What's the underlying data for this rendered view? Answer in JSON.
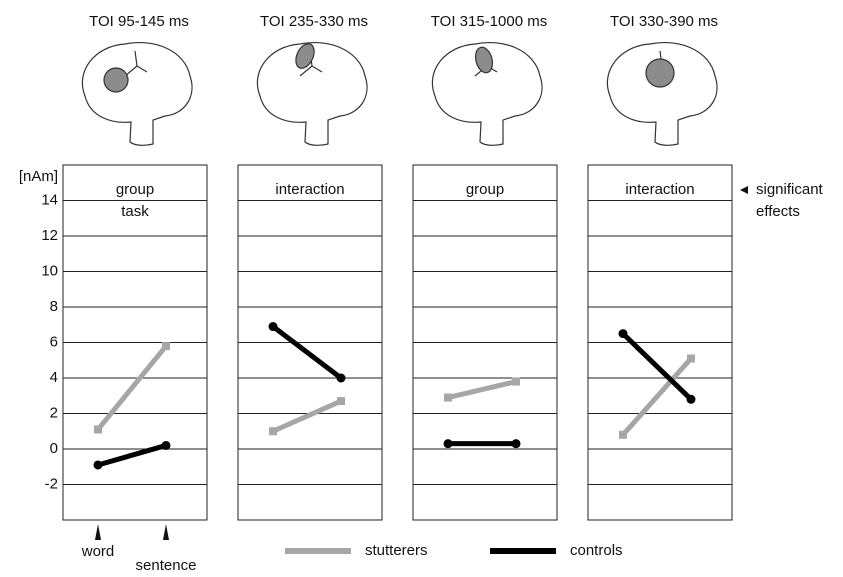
{
  "chart_data": [
    {
      "type": "line",
      "title": "TOI 95-145 ms",
      "annotations": [
        "group",
        "task"
      ],
      "y_label": "[nAm]",
      "categories": [
        "word",
        "sentence"
      ],
      "ylim": [
        -4,
        16
      ],
      "yticks": [
        -2,
        0,
        2,
        4,
        6,
        8,
        10,
        12,
        14
      ],
      "series": [
        {
          "name": "stutterers",
          "color": "#a6a6a6",
          "values": [
            1.1,
            5.8
          ]
        },
        {
          "name": "controls",
          "color": "#000000",
          "values": [
            -0.9,
            0.2
          ]
        }
      ]
    },
    {
      "type": "line",
      "title": "TOI 235-330 ms",
      "annotations": [
        "interaction"
      ],
      "ylim": [
        -4,
        16
      ],
      "series": [
        {
          "name": "stutterers",
          "color": "#a6a6a6",
          "values": [
            1.0,
            2.7
          ]
        },
        {
          "name": "controls",
          "color": "#000000",
          "values": [
            6.9,
            4.0
          ]
        }
      ]
    },
    {
      "type": "line",
      "title": "TOI 315-1000 ms",
      "annotations": [
        "group"
      ],
      "ylim": [
        -4,
        16
      ],
      "series": [
        {
          "name": "stutterers",
          "color": "#a6a6a6",
          "values": [
            2.9,
            3.8
          ]
        },
        {
          "name": "controls",
          "color": "#000000",
          "values": [
            0.3,
            0.3
          ]
        }
      ]
    },
    {
      "type": "line",
      "title": "TOI 330-390 ms",
      "annotations": [
        "interaction"
      ],
      "ylim": [
        -4,
        16
      ],
      "series": [
        {
          "name": "stutterers",
          "color": "#a6a6a6",
          "values": [
            0.8,
            5.1
          ]
        },
        {
          "name": "controls",
          "color": "#000000",
          "values": [
            6.5,
            2.8
          ]
        }
      ]
    }
  ],
  "side_note": [
    "significant",
    "effects"
  ]
}
